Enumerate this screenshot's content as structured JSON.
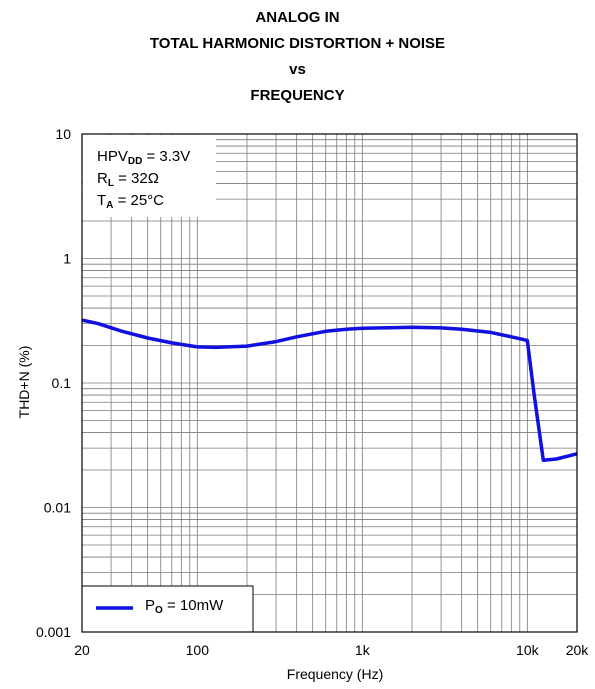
{
  "chart_data": {
    "type": "line",
    "title_lines": [
      "ANALOG IN",
      "TOTAL HARMONIC DISTORTION + NOISE",
      "vs",
      "FREQUENCY"
    ],
    "xlabel": "Frequency (Hz)",
    "ylabel": "THD+N (%)",
    "x_scale": "log",
    "y_scale": "log",
    "xlim": [
      20,
      20000
    ],
    "ylim": [
      0.001,
      10
    ],
    "grid": true,
    "x_ticks": [
      {
        "value": 20,
        "label": "20"
      },
      {
        "value": 100,
        "label": "100"
      },
      {
        "value": 1000,
        "label": "1k"
      },
      {
        "value": 10000,
        "label": "10k"
      },
      {
        "value": 20000,
        "label": "20k"
      }
    ],
    "y_ticks": [
      {
        "value": 10,
        "label": "10"
      },
      {
        "value": 1,
        "label": "1"
      },
      {
        "value": 0.1,
        "label": "0.1"
      },
      {
        "value": 0.01,
        "label": "0.01"
      },
      {
        "value": 0.001,
        "label": "0.001"
      }
    ],
    "conditions": {
      "line1": {
        "pre": "HPV",
        "sub": "DD",
        "post": " = 3.3V"
      },
      "line2": {
        "pre": "R",
        "sub": "L",
        "post": " = 32Ω"
      },
      "line3": {
        "pre": "T",
        "sub": "A",
        "post": " = 25°C"
      }
    },
    "legend_position": "bottom-left",
    "series": [
      {
        "name_pre": "P",
        "name_sub": "O",
        "name_post": " = 10mW",
        "color": "#1010e0",
        "points": [
          [
            20,
            0.32
          ],
          [
            25,
            0.3
          ],
          [
            35,
            0.26
          ],
          [
            50,
            0.23
          ],
          [
            70,
            0.21
          ],
          [
            100,
            0.195
          ],
          [
            130,
            0.193
          ],
          [
            200,
            0.198
          ],
          [
            300,
            0.215
          ],
          [
            400,
            0.235
          ],
          [
            600,
            0.26
          ],
          [
            800,
            0.27
          ],
          [
            1000,
            0.275
          ],
          [
            1500,
            0.278
          ],
          [
            2000,
            0.28
          ],
          [
            3000,
            0.277
          ],
          [
            4000,
            0.27
          ],
          [
            6000,
            0.255
          ],
          [
            8000,
            0.235
          ],
          [
            10000,
            0.22
          ],
          [
            11000,
            0.08
          ],
          [
            12500,
            0.024
          ],
          [
            15000,
            0.0245
          ],
          [
            20000,
            0.027
          ]
        ]
      }
    ]
  }
}
